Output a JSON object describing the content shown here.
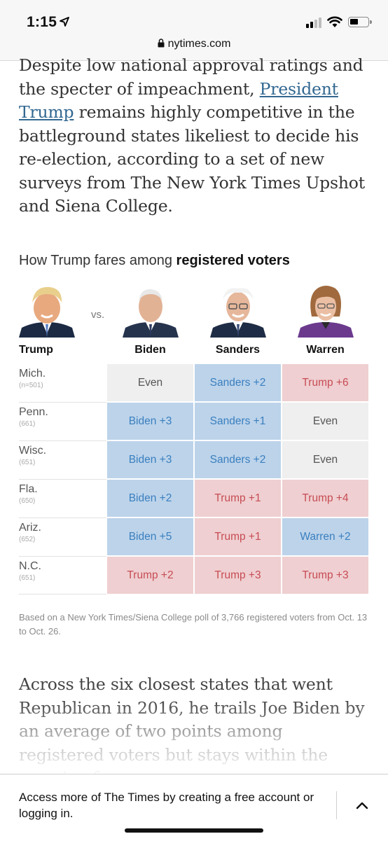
{
  "status_bar": {
    "time": "1:15"
  },
  "browser": {
    "url": "nytimes.com"
  },
  "article": {
    "para1_before": "Despite low national approval ratings and the specter of impeachment, ",
    "para1_link": "President Trump",
    "para1_after": " remains highly competitive in the battleground states likeliest to decide his re-election, according to a set of new surveys from The New York Times Upshot and Siena College.",
    "para2": "Across the six closest states that went Republican in 2016, he trails Joe Biden by an average of two points among registered voters but stays within the margin of error."
  },
  "graphic": {
    "title_prefix": "How Trump fares among ",
    "title_bold": "registered voters",
    "vs": "vs.",
    "columns": [
      "Trump",
      "Biden",
      "Sanders",
      "Warren"
    ],
    "rows": [
      {
        "state": "Mich.",
        "n": "(n=501)",
        "cells": [
          {
            "text": "Even",
            "lean": "even"
          },
          {
            "text": "Sanders +2",
            "lean": "dem"
          },
          {
            "text": "Trump +6",
            "lean": "rep"
          }
        ]
      },
      {
        "state": "Penn.",
        "n": "(661)",
        "cells": [
          {
            "text": "Biden +3",
            "lean": "dem"
          },
          {
            "text": "Sanders +1",
            "lean": "dem"
          },
          {
            "text": "Even",
            "lean": "even"
          }
        ]
      },
      {
        "state": "Wisc.",
        "n": "(651)",
        "cells": [
          {
            "text": "Biden +3",
            "lean": "dem"
          },
          {
            "text": "Sanders +2",
            "lean": "dem"
          },
          {
            "text": "Even",
            "lean": "even"
          }
        ]
      },
      {
        "state": "Fla.",
        "n": "(650)",
        "cells": [
          {
            "text": "Biden +2",
            "lean": "dem"
          },
          {
            "text": "Trump +1",
            "lean": "rep"
          },
          {
            "text": "Trump +4",
            "lean": "rep"
          }
        ]
      },
      {
        "state": "Ariz.",
        "n": "(652)",
        "cells": [
          {
            "text": "Biden +5",
            "lean": "dem"
          },
          {
            "text": "Trump +1",
            "lean": "rep"
          },
          {
            "text": "Warren +2",
            "lean": "dem"
          }
        ]
      },
      {
        "state": "N.C.",
        "n": "(651)",
        "cells": [
          {
            "text": "Trump +2",
            "lean": "rep"
          },
          {
            "text": "Trump +3",
            "lean": "rep"
          },
          {
            "text": "Trump +3",
            "lean": "rep"
          }
        ]
      }
    ],
    "source": "Based on a New York Times/Siena College poll of 3,766 registered voters from Oct. 13 to Oct. 26.",
    "colors": {
      "dem_fill": "#bcd3ea",
      "dem_text": "#3a7fbf",
      "rep_fill": "#efcfd1",
      "rep_text": "#c74c54",
      "even_fill": "#efefef"
    }
  },
  "banner": {
    "text": "Access more of The Times by creating a free account or logging in.",
    "icon": "chevron-up-icon"
  }
}
